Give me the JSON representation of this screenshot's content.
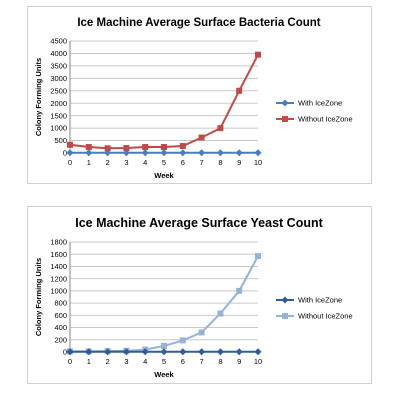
{
  "chart_data": [
    {
      "type": "line",
      "title": "Ice Machine Average Surface Bacteria Count",
      "xlabel": "Week",
      "ylabel": "Colony Forming Units",
      "x": [
        0,
        1,
        2,
        3,
        4,
        5,
        6,
        7,
        8,
        9,
        10
      ],
      "ylim": [
        0,
        4500
      ],
      "yticks": [
        0,
        500,
        1000,
        1500,
        2000,
        2500,
        3000,
        3500,
        4000,
        4500
      ],
      "grid": true,
      "legend": "right",
      "series": [
        {
          "name": "With IceZone",
          "color": "#4a7ebb",
          "marker": "diamond",
          "values": [
            10,
            10,
            10,
            10,
            10,
            10,
            10,
            10,
            10,
            10,
            10
          ]
        },
        {
          "name": "Without IceZone",
          "color": "#be4b48",
          "marker": "square",
          "values": [
            330,
            240,
            190,
            200,
            240,
            240,
            280,
            620,
            1000,
            2500,
            3950
          ]
        }
      ]
    },
    {
      "type": "line",
      "title": "Ice Machine Average Surface Yeast Count",
      "xlabel": "Week",
      "ylabel": "Colony Forming Units",
      "x": [
        0,
        1,
        2,
        3,
        4,
        5,
        6,
        7,
        8,
        9,
        10
      ],
      "ylim": [
        0,
        1800
      ],
      "yticks": [
        0,
        200,
        400,
        600,
        800,
        1000,
        1200,
        1400,
        1600,
        1800
      ],
      "grid": true,
      "legend": "right",
      "series": [
        {
          "name": "With IceZone",
          "color": "#2e5d9c",
          "marker": "diamond",
          "values": [
            5,
            5,
            5,
            5,
            5,
            5,
            5,
            5,
            5,
            5,
            5
          ]
        },
        {
          "name": "Without IceZone",
          "color": "#95b3d7",
          "marker": "square",
          "values": [
            10,
            10,
            15,
            20,
            40,
            100,
            190,
            320,
            630,
            1000,
            1570
          ]
        }
      ]
    }
  ]
}
